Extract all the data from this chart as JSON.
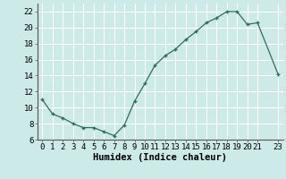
{
  "x": [
    0,
    1,
    2,
    3,
    4,
    5,
    6,
    7,
    8,
    9,
    10,
    11,
    12,
    13,
    14,
    15,
    16,
    17,
    18,
    19,
    20,
    21,
    23
  ],
  "y": [
    11.0,
    9.2,
    8.7,
    8.0,
    7.5,
    7.5,
    7.0,
    6.5,
    7.8,
    10.8,
    13.0,
    15.3,
    16.5,
    17.3,
    18.5,
    19.5,
    20.6,
    21.2,
    22.0,
    22.0,
    20.4,
    20.6,
    14.2
  ],
  "line_color": "#2e6e5e",
  "marker": "+",
  "marker_size": 3,
  "background_color": "#cceae7",
  "grid_color": "#ffffff",
  "xlabel": "Humidex (Indice chaleur)",
  "xlim": [
    -0.5,
    23.5
  ],
  "ylim": [
    6,
    23
  ],
  "xticks": [
    0,
    1,
    2,
    3,
    4,
    5,
    6,
    7,
    8,
    9,
    10,
    11,
    12,
    13,
    14,
    15,
    16,
    17,
    18,
    19,
    20,
    21,
    23
  ],
  "yticks": [
    6,
    8,
    10,
    12,
    14,
    16,
    18,
    20,
    22
  ],
  "xtick_labels": [
    "0",
    "1",
    "2",
    "3",
    "4",
    "5",
    "6",
    "7",
    "8",
    "9",
    "10",
    "11",
    "12",
    "13",
    "14",
    "15",
    "16",
    "17",
    "18",
    "19",
    "20",
    "21",
    "23"
  ],
  "font_size": 6.5,
  "xlabel_font_size": 7.5
}
